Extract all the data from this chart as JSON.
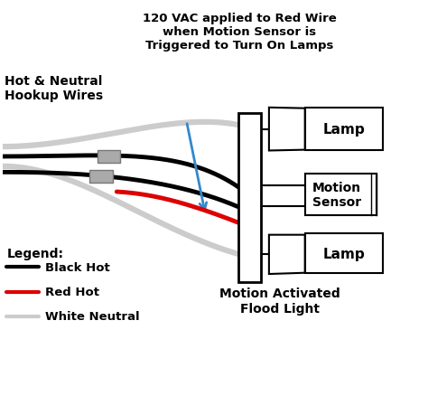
{
  "title_line1": "120 VAC applied to Red Wire",
  "title_line2": "when Motion Sensor is",
  "title_line3": "Triggered to Turn On Lamps",
  "hookup_label_line1": "Hot & Neutral",
  "hookup_label_line2": "Hookup Wires",
  "legend_title": "Legend:",
  "legend_black": "Black Hot",
  "legend_red": "Red Hot",
  "legend_white": "White Neutral",
  "bottom_label_line1": "Motion Activated",
  "bottom_label_line2": "Flood Light",
  "lamp_label": "Lamp",
  "sensor_label_line1": "Motion",
  "sensor_label_line2": "Sensor",
  "bg_color": "#ffffff",
  "black_wire_color": "#000000",
  "red_wire_color": "#dd0000",
  "white_wire_color": "#cccccc",
  "box_fill": "#ffffff",
  "box_edge": "#000000",
  "connector_fill": "#aaaaaa",
  "arrow_color": "#3388cc",
  "wire_lw": 3.5
}
